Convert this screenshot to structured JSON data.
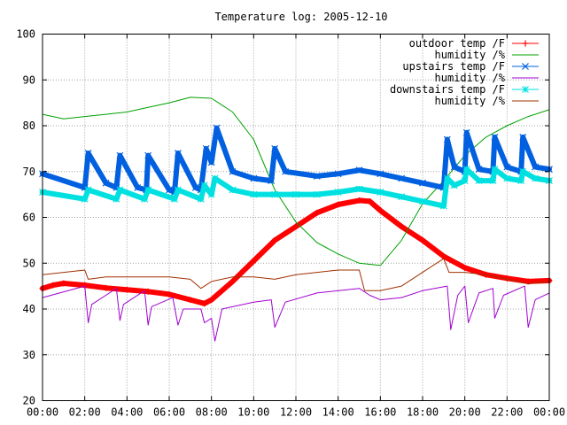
{
  "chart_data": {
    "type": "line",
    "title": "Temperature log: 2005-12-10",
    "xlabel": "",
    "ylabel": "",
    "xlim": [
      "00:00",
      "24:00"
    ],
    "ylim": [
      20,
      100
    ],
    "grid": true,
    "legend_position": "top-right",
    "x_tick_labels": [
      "00:00",
      "02:00",
      "04:00",
      "06:00",
      "08:00",
      "10:00",
      "12:00",
      "14:00",
      "16:00",
      "18:00",
      "20:00",
      "22:00",
      "00:00"
    ],
    "y_ticks": [
      20,
      30,
      40,
      50,
      60,
      70,
      80,
      90,
      100
    ],
    "series": [
      {
        "name": "outdoor temp /F",
        "color": "#ff0000",
        "marker": "plus",
        "points": [
          [
            "00:00",
            44.5
          ],
          [
            "00:30",
            45.2
          ],
          [
            "01:00",
            45.6
          ],
          [
            "02:00",
            45.2
          ],
          [
            "03:00",
            44.6
          ],
          [
            "04:00",
            44.2
          ],
          [
            "05:00",
            43.8
          ],
          [
            "06:00",
            43.2
          ],
          [
            "07:00",
            42.0
          ],
          [
            "07:40",
            41.2
          ],
          [
            "08:00",
            42.0
          ],
          [
            "09:00",
            46.0
          ],
          [
            "10:00",
            50.5
          ],
          [
            "11:00",
            55.0
          ],
          [
            "12:00",
            58.0
          ],
          [
            "13:00",
            61.0
          ],
          [
            "14:00",
            62.8
          ],
          [
            "15:00",
            63.7
          ],
          [
            "15:30",
            63.5
          ],
          [
            "16:00",
            61.5
          ],
          [
            "17:00",
            58.0
          ],
          [
            "18:00",
            55.0
          ],
          [
            "19:00",
            51.5
          ],
          [
            "20:00",
            49.0
          ],
          [
            "21:00",
            47.5
          ],
          [
            "22:00",
            46.7
          ],
          [
            "23:00",
            46.0
          ],
          [
            "24:00",
            46.2
          ]
        ]
      },
      {
        "name": "humidity /%",
        "color": "#00a000",
        "marker": "none",
        "points": [
          [
            "00:00",
            82.5
          ],
          [
            "01:00",
            81.5
          ],
          [
            "02:00",
            82.0
          ],
          [
            "03:00",
            82.5
          ],
          [
            "04:00",
            83.0
          ],
          [
            "05:00",
            84.0
          ],
          [
            "06:00",
            85.0
          ],
          [
            "07:00",
            86.2
          ],
          [
            "08:00",
            86.0
          ],
          [
            "09:00",
            83.0
          ],
          [
            "10:00",
            77.0
          ],
          [
            "11:00",
            66.0
          ],
          [
            "12:00",
            59.0
          ],
          [
            "13:00",
            54.5
          ],
          [
            "14:00",
            52.0
          ],
          [
            "15:00",
            50.0
          ],
          [
            "16:00",
            49.5
          ],
          [
            "17:00",
            55.0
          ],
          [
            "18:00",
            63.0
          ],
          [
            "19:00",
            68.0
          ],
          [
            "20:00",
            73.5
          ],
          [
            "21:00",
            77.5
          ],
          [
            "22:00",
            80.0
          ],
          [
            "23:00",
            82.0
          ],
          [
            "24:00",
            83.5
          ]
        ]
      },
      {
        "name": "upstairs temp /F",
        "color": "#0060e0",
        "marker": "x",
        "points": [
          [
            "00:00",
            69.5
          ],
          [
            "02:00",
            66.5
          ],
          [
            "02:10",
            74.0
          ],
          [
            "03:00",
            67.5
          ],
          [
            "03:30",
            66.5
          ],
          [
            "03:40",
            73.5
          ],
          [
            "04:30",
            66.5
          ],
          [
            "04:55",
            66.0
          ],
          [
            "05:00",
            73.5
          ],
          [
            "06:00",
            66.0
          ],
          [
            "06:15",
            65.5
          ],
          [
            "06:25",
            74.0
          ],
          [
            "07:15",
            66.5
          ],
          [
            "07:30",
            66.0
          ],
          [
            "07:45",
            75.0
          ],
          [
            "08:00",
            72.0
          ],
          [
            "08:15",
            79.5
          ],
          [
            "09:00",
            70.0
          ],
          [
            "10:00",
            68.5
          ],
          [
            "10:50",
            68.0
          ],
          [
            "11:00",
            75.0
          ],
          [
            "11:30",
            70.0
          ],
          [
            "13:00",
            69.0
          ],
          [
            "14:00",
            69.5
          ],
          [
            "15:00",
            70.3
          ],
          [
            "16:00",
            69.5
          ],
          [
            "17:00",
            68.5
          ],
          [
            "18:00",
            67.5
          ],
          [
            "19:00",
            66.5
          ],
          [
            "19:10",
            77.0
          ],
          [
            "19:30",
            71.0
          ],
          [
            "20:00",
            70.0
          ],
          [
            "20:05",
            78.5
          ],
          [
            "20:40",
            70.5
          ],
          [
            "21:20",
            70.0
          ],
          [
            "21:25",
            77.5
          ],
          [
            "22:00",
            71.0
          ],
          [
            "22:40",
            70.0
          ],
          [
            "22:45",
            77.5
          ],
          [
            "23:20",
            71.0
          ],
          [
            "24:00",
            70.5
          ]
        ]
      },
      {
        "name": "humidity /%",
        "color": "#a000d0",
        "marker": "none",
        "points": [
          [
            "00:00",
            42.5
          ],
          [
            "02:00",
            45.0
          ],
          [
            "02:10",
            37.0
          ],
          [
            "02:20",
            41.0
          ],
          [
            "03:30",
            44.5
          ],
          [
            "03:40",
            37.5
          ],
          [
            "03:50",
            41.0
          ],
          [
            "04:50",
            44.0
          ],
          [
            "05:00",
            36.5
          ],
          [
            "05:10",
            40.5
          ],
          [
            "06:10",
            42.5
          ],
          [
            "06:25",
            36.5
          ],
          [
            "06:40",
            40.0
          ],
          [
            "07:30",
            40.0
          ],
          [
            "07:40",
            37.0
          ],
          [
            "08:00",
            38.0
          ],
          [
            "08:10",
            33.0
          ],
          [
            "08:30",
            40.0
          ],
          [
            "10:00",
            41.5
          ],
          [
            "10:50",
            42.0
          ],
          [
            "11:00",
            36.0
          ],
          [
            "11:30",
            41.5
          ],
          [
            "13:00",
            43.5
          ],
          [
            "15:00",
            44.5
          ],
          [
            "15:30",
            43.0
          ],
          [
            "16:00",
            42.0
          ],
          [
            "17:00",
            42.5
          ],
          [
            "18:00",
            44.0
          ],
          [
            "19:10",
            45.0
          ],
          [
            "19:20",
            35.5
          ],
          [
            "19:40",
            43.0
          ],
          [
            "20:00",
            45.0
          ],
          [
            "20:10",
            37.0
          ],
          [
            "20:40",
            43.5
          ],
          [
            "21:20",
            44.5
          ],
          [
            "21:25",
            38.0
          ],
          [
            "21:50",
            43.0
          ],
          [
            "22:50",
            45.0
          ],
          [
            "23:00",
            36.0
          ],
          [
            "23:20",
            42.0
          ],
          [
            "24:00",
            43.5
          ]
        ]
      },
      {
        "name": "downstairs temp /F",
        "color": "#00e0e0",
        "marker": "asterisk",
        "points": [
          [
            "00:00",
            65.5
          ],
          [
            "02:00",
            64.0
          ],
          [
            "02:10",
            66.0
          ],
          [
            "03:30",
            64.0
          ],
          [
            "03:40",
            66.0
          ],
          [
            "04:50",
            64.0
          ],
          [
            "05:00",
            66.0
          ],
          [
            "06:15",
            64.0
          ],
          [
            "06:25",
            66.0
          ],
          [
            "07:30",
            64.0
          ],
          [
            "07:40",
            67.0
          ],
          [
            "08:00",
            65.0
          ],
          [
            "08:10",
            68.5
          ],
          [
            "09:00",
            66.0
          ],
          [
            "10:00",
            65.0
          ],
          [
            "11:00",
            65.0
          ],
          [
            "12:00",
            65.0
          ],
          [
            "13:00",
            65.0
          ],
          [
            "14:00",
            65.5
          ],
          [
            "15:00",
            66.2
          ],
          [
            "16:00",
            65.5
          ],
          [
            "17:00",
            64.5
          ],
          [
            "18:00",
            63.5
          ],
          [
            "19:00",
            62.5
          ],
          [
            "19:10",
            68.5
          ],
          [
            "19:30",
            67.0
          ],
          [
            "20:00",
            68.0
          ],
          [
            "20:05",
            70.5
          ],
          [
            "20:40",
            68.0
          ],
          [
            "21:20",
            68.0
          ],
          [
            "21:25",
            70.5
          ],
          [
            "22:00",
            68.5
          ],
          [
            "22:40",
            68.0
          ],
          [
            "22:45",
            70.0
          ],
          [
            "23:20",
            68.5
          ],
          [
            "24:00",
            68.0
          ]
        ]
      },
      {
        "name": "humidity /%",
        "color": "#a03000",
        "marker": "none",
        "points": [
          [
            "00:00",
            47.5
          ],
          [
            "02:00",
            48.5
          ],
          [
            "02:10",
            46.5
          ],
          [
            "03:00",
            47.0
          ],
          [
            "04:00",
            47.0
          ],
          [
            "05:00",
            47.0
          ],
          [
            "06:00",
            47.0
          ],
          [
            "07:00",
            46.5
          ],
          [
            "07:30",
            44.5
          ],
          [
            "08:00",
            46.0
          ],
          [
            "09:00",
            47.0
          ],
          [
            "10:00",
            47.0
          ],
          [
            "11:00",
            46.5
          ],
          [
            "12:00",
            47.5
          ],
          [
            "13:00",
            48.0
          ],
          [
            "14:00",
            48.5
          ],
          [
            "15:00",
            48.5
          ],
          [
            "15:15",
            44.0
          ],
          [
            "16:00",
            44.0
          ],
          [
            "17:00",
            45.0
          ],
          [
            "18:00",
            48.0
          ],
          [
            "19:00",
            51.0
          ],
          [
            "19:15",
            48.0
          ],
          [
            "20:00",
            48.0
          ],
          [
            "21:00",
            47.5
          ],
          [
            "22:00",
            46.5
          ],
          [
            "23:00",
            45.5
          ],
          [
            "24:00",
            46.0
          ]
        ]
      }
    ]
  }
}
